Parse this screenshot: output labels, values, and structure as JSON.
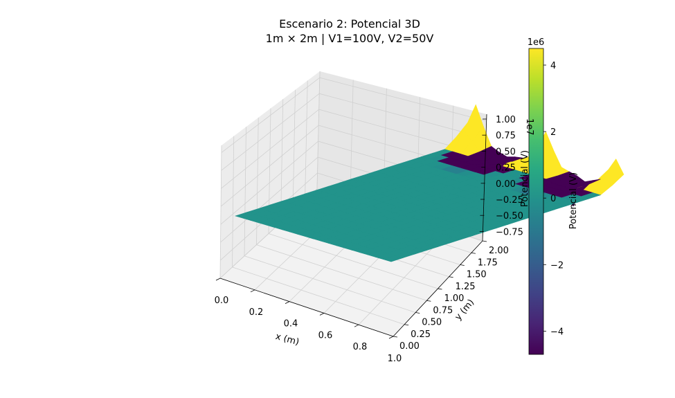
{
  "chart_data": {
    "type": "surface3d",
    "title": "Escenario 2: Potencial 3D",
    "subtitle": "1m × 2m | V1=100V, V2=50V",
    "xlabel": "x (m)",
    "ylabel": "y (m)",
    "zlabel": "Potencial (V)",
    "z_offset_label": "1e7",
    "x_ticks": [
      "0.0",
      "0.2",
      "0.4",
      "0.6",
      "0.8",
      "1.0"
    ],
    "y_ticks": [
      "0.00",
      "0.25",
      "0.50",
      "0.75",
      "1.00",
      "1.25",
      "1.50",
      "1.75",
      "2.00"
    ],
    "z_ticks": [
      "1.00",
      "0.75",
      "0.50",
      "0.25",
      "0.00",
      "−0.25",
      "−0.50",
      "−0.75"
    ],
    "xlim": [
      0,
      1
    ],
    "ylim": [
      0,
      2
    ],
    "zlim_scaled": [
      -0.9,
      1.05
    ],
    "colormap": "viridis",
    "colorbar": {
      "label": "Potencial (V)",
      "offset_label": "1e6",
      "ticks": [
        "4",
        "2",
        "0",
        "−2",
        "−4"
      ],
      "range": [
        -4.7,
        4.5
      ]
    },
    "grid": true,
    "surface_shape": "flat plane at 0 V with large spikes along the far edge (y = 2 m)",
    "peaks": [
      {
        "x": 0.05,
        "y": 2.0,
        "potential": 6000000
      },
      {
        "x": 0.5,
        "y": 2.0,
        "potential": 5000000
      },
      {
        "x": 0.95,
        "y": 2.0,
        "potential": 4000000
      }
    ],
    "dips": [
      {
        "x": 0.25,
        "y": 1.9,
        "potential": -2500000
      },
      {
        "x": 0.75,
        "y": 1.9,
        "potential": -4000000
      }
    ]
  }
}
